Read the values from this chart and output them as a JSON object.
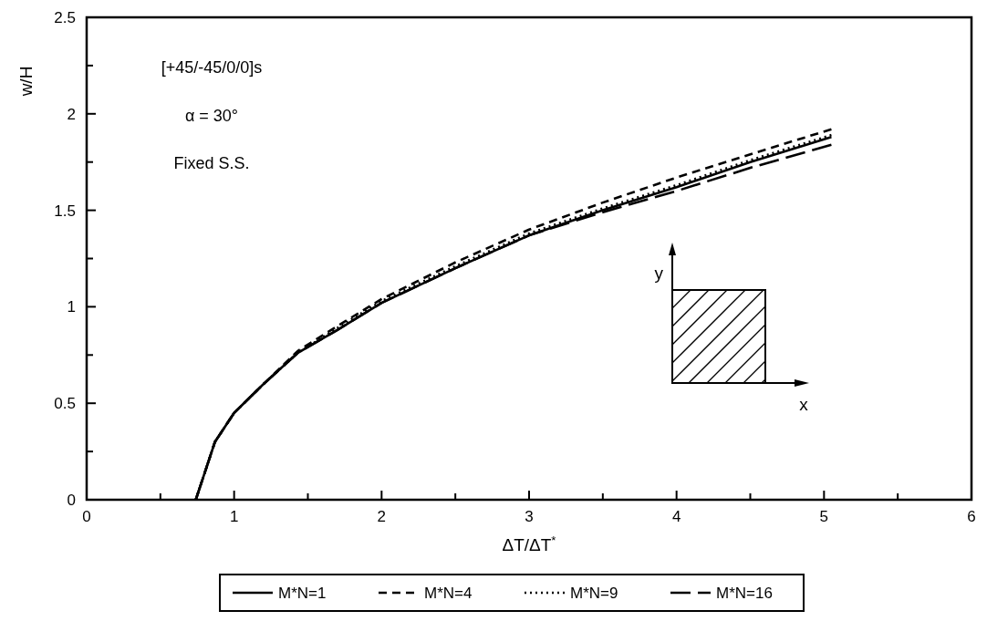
{
  "chart_data": {
    "type": "line",
    "xlabel": "ΔT/ΔT$^{*}$",
    "ylabel": "w/H",
    "xlim": [
      0,
      6
    ],
    "ylim": [
      0,
      2.5
    ],
    "xticks": [
      0,
      {
        "value": 0.5,
        "label": null
      },
      1,
      {
        "value": 1.5,
        "label": null
      },
      2,
      {
        "value": 2.5,
        "label": null
      },
      3,
      {
        "value": 3.5,
        "label": null
      },
      4,
      {
        "value": 4.5,
        "label": null
      },
      5,
      {
        "value": 5.5,
        "label": null
      },
      6
    ],
    "yticks": [
      0,
      {
        "value": 0.25,
        "label": null
      },
      0.5,
      {
        "value": 0.75,
        "label": null
      },
      1,
      {
        "value": 1.25,
        "label": null
      },
      1.5,
      {
        "value": 1.75,
        "label": null
      },
      2,
      {
        "value": 2.25,
        "label": null
      },
      2.5
    ],
    "x": [
      0.74,
      0.87,
      1.0,
      1.2,
      1.43,
      1.7,
      2.0,
      2.5,
      3.0,
      3.5,
      4.0,
      4.5,
      5.05
    ],
    "series": [
      {
        "name": "M*N=1",
        "color": "#000000",
        "line_style": "solid",
        "values": [
          0,
          0.3,
          0.45,
          0.6,
          0.76,
          0.88,
          1.02,
          1.2,
          1.37,
          1.5,
          1.62,
          1.75,
          1.88
        ]
      },
      {
        "name": "M*N=4",
        "color": "#000000",
        "line_style": "dashed",
        "values": [
          0,
          0.3,
          0.45,
          0.6,
          0.77,
          0.9,
          1.04,
          1.23,
          1.4,
          1.54,
          1.67,
          1.79,
          1.92
        ]
      },
      {
        "name": "M*N=9",
        "color": "#000000",
        "line_style": "dotted",
        "values": [
          0,
          0.3,
          0.45,
          0.6,
          0.76,
          0.89,
          1.03,
          1.21,
          1.38,
          1.51,
          1.63,
          1.76,
          1.89
        ]
      },
      {
        "name": "M*N=16",
        "color": "#000000",
        "line_style": "dashed",
        "values": [
          0,
          0.3,
          0.45,
          0.6,
          0.76,
          0.88,
          1.02,
          1.2,
          1.37,
          1.49,
          1.6,
          1.72,
          1.84
        ]
      }
    ],
    "annotations": [
      "[+45/-45/0/0]s",
      "α = 30°",
      "Fixed S.S.",
      "y",
      "x"
    ],
    "legend": "bottom",
    "grid": false
  }
}
